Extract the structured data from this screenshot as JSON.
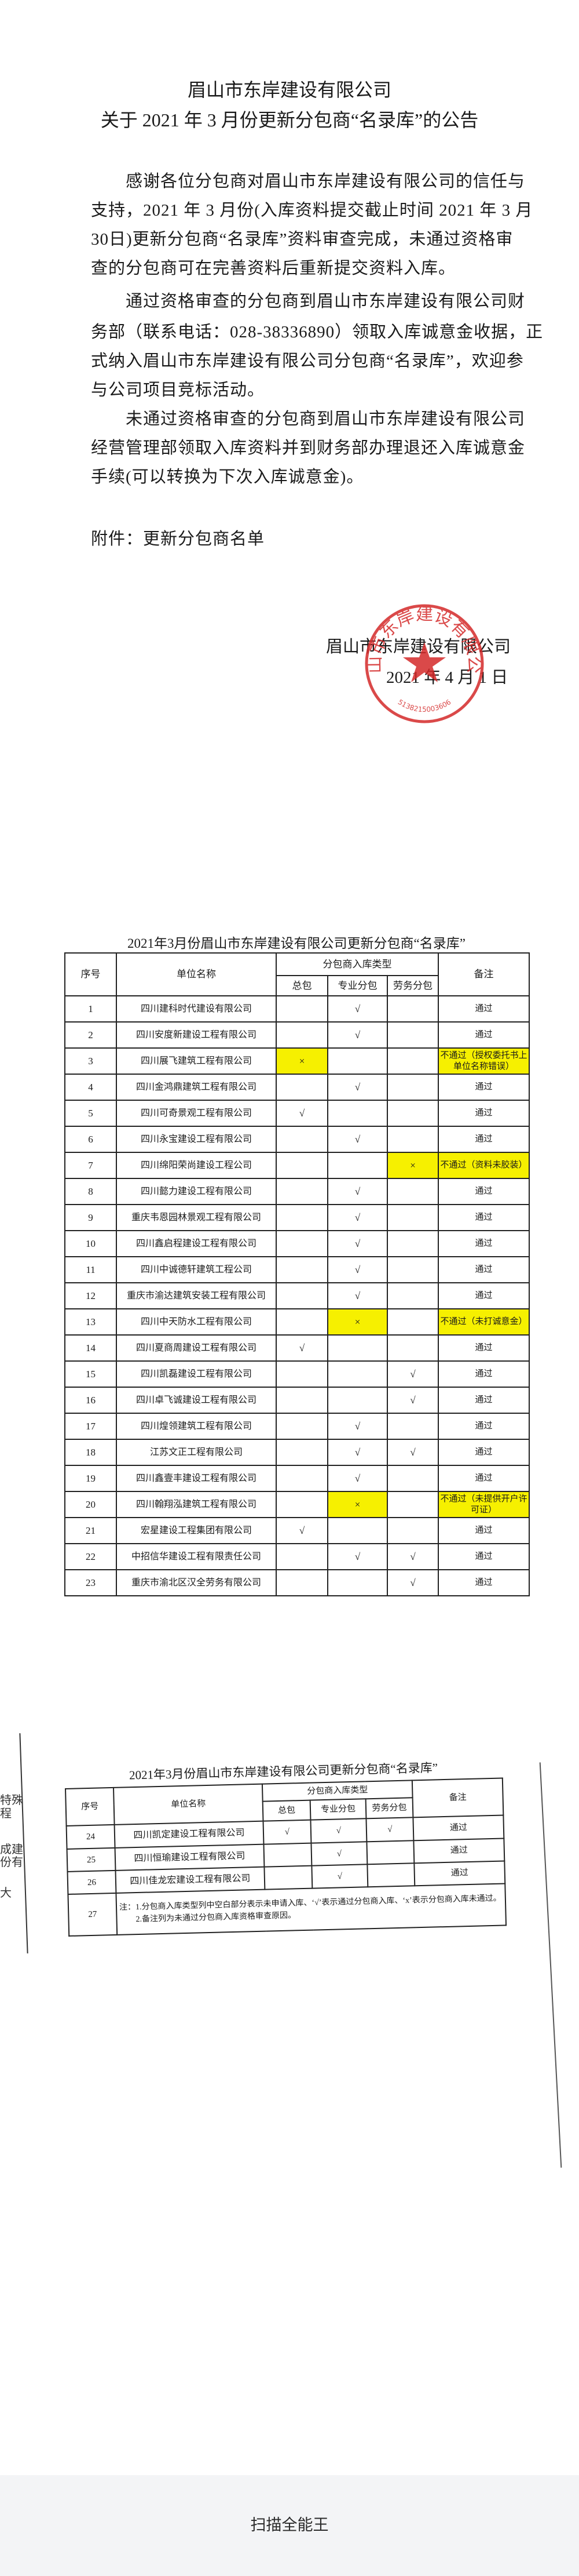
{
  "notice": {
    "title_line1": "眉山市东岸建设有限公司",
    "title_line2": "关于 2021 年 3 月份更新分包商“名录库”的公告",
    "paragraph1": [
      "　　感谢各位分包商对眉山市东岸建设有限公司的信任与",
      "支持，2021 年 3 月份(入库资料提交截止时间 2021 年 3 月",
      "30日)更新分包商“名录库”资料审查完成，未通过资格审",
      "查的分包商可在完善资料后重新提交资料入库。"
    ],
    "paragraph2": [
      "　　通过资格审查的分包商到眉山市东岸建设有限公司财",
      "务部（联系电话：028-38336890）领取入库诚意金收据，正",
      "式纳入眉山市东岸建设有限公司分包商“名录库”，欢迎参",
      "与公司项目竞标活动。"
    ],
    "paragraph3": [
      "　　未通过资格审查的分包商到眉山市东岸建设有限公司",
      "经营管理部领取入库资料并到财务部办理退还入库诚意金",
      "手续(可以转换为下次入库诚意金)。"
    ],
    "attachment": "附件：更新分包商名单",
    "signature_company": "眉山市东岸建设有限公司",
    "signature_date": "2021 年 4 月 1 日",
    "stamp": {
      "text": "眉山市东岸建设有限公司",
      "number": "5138215003606",
      "color": "#d42a2a"
    }
  },
  "table": {
    "title": "2021年3月份眉山市东岸建设有限公司更新分包商“名录库”",
    "headers": {
      "no": "序号",
      "name": "单位名称",
      "type_group": "分包商入库类型",
      "general": "总包",
      "specialty": "专业分包",
      "labor": "劳务分包",
      "remark": "备注"
    },
    "highlight_color": "#f6f000",
    "rows": [
      {
        "no": "1",
        "name": "四川建科时代建设有限公司",
        "general": "",
        "specialty": "√",
        "labor": "",
        "remark": "通过",
        "fail_col": ""
      },
      {
        "no": "2",
        "name": "四川安度新建设工程有限公司",
        "general": "",
        "specialty": "√",
        "labor": "",
        "remark": "通过",
        "fail_col": ""
      },
      {
        "no": "3",
        "name": "四川展飞建筑工程有限公司",
        "general": "×",
        "specialty": "",
        "labor": "",
        "remark": "不通过（授权委托书上单位名称错误）",
        "fail_col": "general"
      },
      {
        "no": "4",
        "name": "四川金鸿鼎建筑工程有限公司",
        "general": "",
        "specialty": "√",
        "labor": "",
        "remark": "通过",
        "fail_col": ""
      },
      {
        "no": "5",
        "name": "四川可奇景观工程有限公司",
        "general": "√",
        "specialty": "",
        "labor": "",
        "remark": "通过",
        "fail_col": ""
      },
      {
        "no": "6",
        "name": "四川永宝建设工程有限公司",
        "general": "",
        "specialty": "√",
        "labor": "",
        "remark": "通过",
        "fail_col": ""
      },
      {
        "no": "7",
        "name": "四川绵阳荣尚建设工程公司",
        "general": "",
        "specialty": "",
        "labor": "×",
        "remark": "不通过（资料未胶装）",
        "fail_col": "labor"
      },
      {
        "no": "8",
        "name": "四川懿力建设工程有限公司",
        "general": "",
        "specialty": "√",
        "labor": "",
        "remark": "通过",
        "fail_col": ""
      },
      {
        "no": "9",
        "name": "重庆韦恩园林景观工程有限公司",
        "general": "",
        "specialty": "√",
        "labor": "",
        "remark": "通过",
        "fail_col": ""
      },
      {
        "no": "10",
        "name": "四川鑫启程建设工程有限公司",
        "general": "",
        "specialty": "√",
        "labor": "",
        "remark": "通过",
        "fail_col": ""
      },
      {
        "no": "11",
        "name": "四川中诚德轩建筑工程公司",
        "general": "",
        "specialty": "√",
        "labor": "",
        "remark": "通过",
        "fail_col": ""
      },
      {
        "no": "12",
        "name": "重庆市渝达建筑安装工程有限公司",
        "general": "",
        "specialty": "√",
        "labor": "",
        "remark": "通过",
        "fail_col": ""
      },
      {
        "no": "13",
        "name": "四川中天防水工程有限公司",
        "general": "",
        "specialty": "×",
        "labor": "",
        "remark": "不通过（未打诚意金）",
        "fail_col": "specialty"
      },
      {
        "no": "14",
        "name": "四川夏商周建设工程有限公司",
        "general": "√",
        "specialty": "",
        "labor": "",
        "remark": "通过",
        "fail_col": ""
      },
      {
        "no": "15",
        "name": "四川凯磊建设工程有限公司",
        "general": "",
        "specialty": "",
        "labor": "√",
        "remark": "通过",
        "fail_col": ""
      },
      {
        "no": "16",
        "name": "四川卓飞诚建设工程有限公司",
        "general": "",
        "specialty": "",
        "labor": "√",
        "remark": "通过",
        "fail_col": ""
      },
      {
        "no": "17",
        "name": "四川煌领建筑工程有限公司",
        "general": "",
        "specialty": "√",
        "labor": "",
        "remark": "通过",
        "fail_col": ""
      },
      {
        "no": "18",
        "name": "江苏文正工程有限公司",
        "general": "",
        "specialty": "√",
        "labor": "√",
        "remark": "通过",
        "fail_col": ""
      },
      {
        "no": "19",
        "name": "四川鑫壹丰建设工程有限公司",
        "general": "",
        "specialty": "√",
        "labor": "",
        "remark": "通过",
        "fail_col": ""
      },
      {
        "no": "20",
        "name": "四川翰翔泓建筑工程有限公司",
        "general": "",
        "specialty": "×",
        "labor": "",
        "remark": "不通过（未提供开户许可证）",
        "fail_col": "specialty"
      },
      {
        "no": "21",
        "name": "宏星建设工程集团有限公司",
        "general": "√",
        "specialty": "",
        "labor": "",
        "remark": "通过",
        "fail_col": ""
      },
      {
        "no": "22",
        "name": "中招信华建设工程有限责任公司",
        "general": "",
        "specialty": "√",
        "labor": "√",
        "remark": "通过",
        "fail_col": ""
      },
      {
        "no": "23",
        "name": "重庆市渝北区汉全劳务有限公司",
        "general": "",
        "specialty": "",
        "labor": "√",
        "remark": "通过",
        "fail_col": ""
      }
    ]
  },
  "table2": {
    "title": "2021年3月份眉山市东岸建设有限公司更新分包商“名录库”",
    "rows": [
      {
        "no": "24",
        "name": "四川凯定建设工程有限公司",
        "general": "√",
        "specialty": "√",
        "labor": "√",
        "remark": "通过",
        "fail_col": ""
      },
      {
        "no": "25",
        "name": "四川恒瑜建设工程有限公司",
        "general": "",
        "specialty": "√",
        "labor": "",
        "remark": "通过",
        "fail_col": ""
      },
      {
        "no": "26",
        "name": "四川佳龙宏建设工程有限公司",
        "general": "",
        "specialty": "√",
        "labor": "",
        "remark": "通过",
        "fail_col": ""
      }
    ],
    "note_row": {
      "no": "27",
      "note_line1": "注：1.分包商入库类型列中空白部分表示未申请入库、‘√’表示通过分包商入库、‘x’表示分包商入库未通过。",
      "note_line2": "　　2.备注列为未通过分包商入库资格审查原因。"
    }
  },
  "background_page_fragments": [
    "特殊",
    "程",
    "成建",
    "份有",
    "大"
  ],
  "footer": {
    "app_name": "扫描全能王"
  }
}
